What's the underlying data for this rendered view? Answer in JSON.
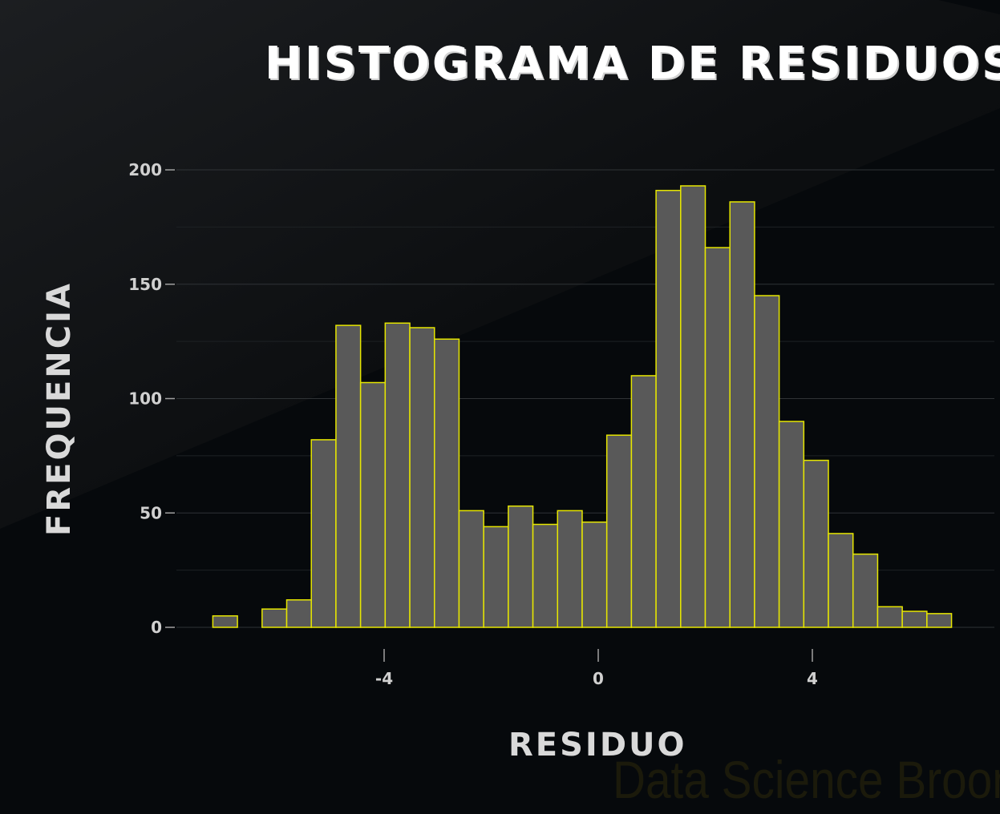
{
  "chart_data": {
    "type": "bar",
    "title": "HISTOGRAMA DE RESIDUOS",
    "xlabel": "RESIDUO",
    "ylabel": "FREQUENCIA",
    "bin_width": 0.46,
    "bin_start": -7.2,
    "values": [
      5,
      0,
      8,
      12,
      82,
      132,
      107,
      133,
      131,
      126,
      51,
      44,
      53,
      45,
      51,
      46,
      84,
      110,
      191,
      193,
      166,
      186,
      145,
      90,
      73,
      41,
      32,
      9,
      7,
      6
    ],
    "xlim": [
      -7.9,
      7.4
    ],
    "ylim": [
      0,
      200
    ],
    "x_ticks": [
      -4,
      0,
      4
    ],
    "x_tick_labels": [
      "-4",
      "0",
      "4"
    ],
    "y_ticks": [
      0,
      50,
      100,
      150,
      200
    ],
    "y_tick_labels": [
      "0",
      "50",
      "100",
      "150",
      "200"
    ],
    "grid": true,
    "colors": {
      "bar_fill": "#595959",
      "bar_stroke": "#e6e600",
      "grid": "#2f3336",
      "background": "#06090c"
    }
  },
  "watermark": "Data Science Broon"
}
